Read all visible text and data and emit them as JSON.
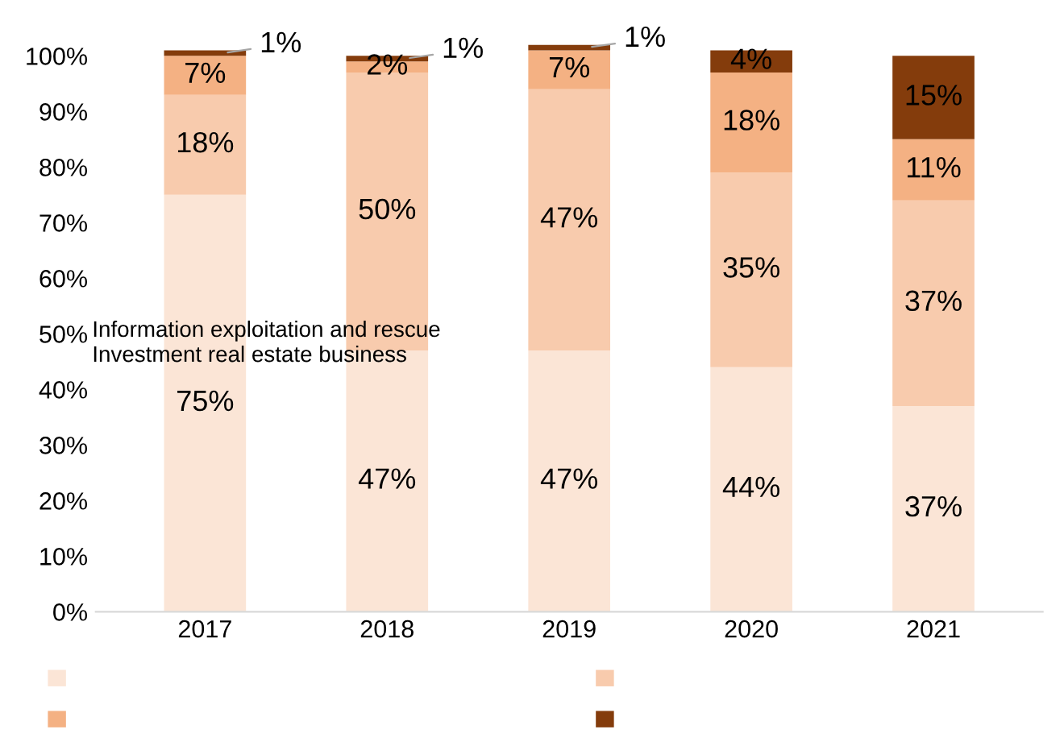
{
  "chart_data": {
    "type": "bar",
    "stacked": true,
    "categories": [
      "2017",
      "2018",
      "2019",
      "2020",
      "2021"
    ],
    "series": [
      {
        "color": "#fbe5d6",
        "values": [
          75,
          47,
          47,
          44,
          37
        ],
        "value_labels": [
          "75%",
          "47%",
          "47%",
          "44%",
          "37%"
        ]
      },
      {
        "color": "#f8cbad",
        "values": [
          18,
          50,
          47,
          35,
          37
        ],
        "value_labels": [
          "18%",
          "50%",
          "47%",
          "35%",
          "37%"
        ]
      },
      {
        "color": "#f4b183",
        "values": [
          7,
          2,
          7,
          18,
          11
        ],
        "value_labels": [
          "7%",
          "2%",
          "7%",
          "18%",
          "11%"
        ]
      },
      {
        "color": "#843c0c",
        "values": [
          1,
          1,
          1,
          4,
          15
        ],
        "value_labels": [
          "1%",
          "1%",
          "1%",
          "4%",
          "15%"
        ]
      }
    ],
    "ylim": [
      0,
      102
    ],
    "yticks": [
      {
        "value": 0,
        "label": "0%"
      },
      {
        "value": 10,
        "label": "10%"
      },
      {
        "value": 20,
        "label": "20%"
      },
      {
        "value": 30,
        "label": "30%"
      },
      {
        "value": 40,
        "label": "40%"
      },
      {
        "value": 50,
        "label": "50%"
      },
      {
        "value": 60,
        "label": "60%"
      },
      {
        "value": 70,
        "label": "70%"
      },
      {
        "value": 80,
        "label": "80%"
      },
      {
        "value": 90,
        "label": "90%"
      },
      {
        "value": 100,
        "label": "100%"
      }
    ],
    "grid": false,
    "annotations": [
      "Information exploitation and rescue",
      "Investment real estate business"
    ]
  }
}
